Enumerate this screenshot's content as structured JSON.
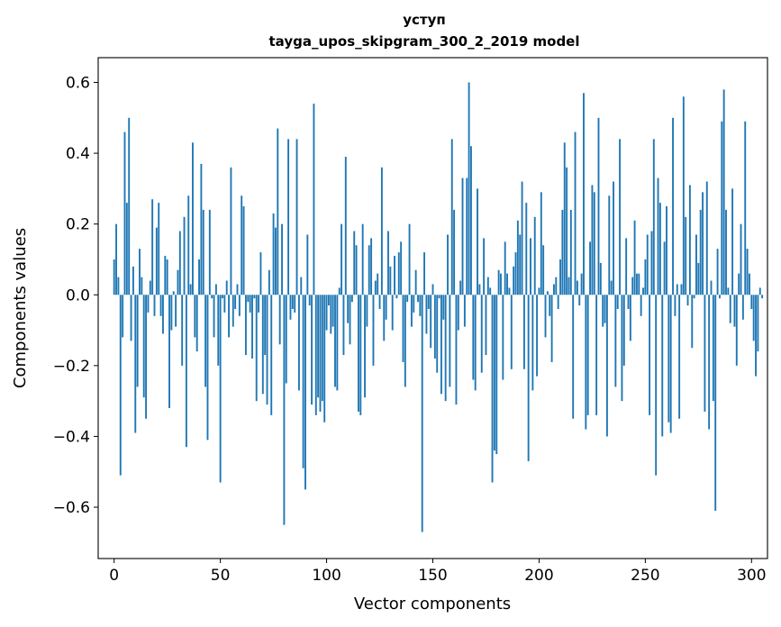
{
  "chart_data": {
    "type": "bar",
    "title": "уступ",
    "subtitle": "tayga_upos_skipgram_300_2_2019 model",
    "xlabel": "Vector components",
    "ylabel": "Components values",
    "xlim": [
      -7.5,
      307.5
    ],
    "ylim": [
      -0.745,
      0.67
    ],
    "x_ticks": [
      {
        "value": 0,
        "label": "0"
      },
      {
        "value": 50,
        "label": "50"
      },
      {
        "value": 100,
        "label": "100"
      },
      {
        "value": 150,
        "label": "150"
      },
      {
        "value": 200,
        "label": "200"
      },
      {
        "value": 250,
        "label": "250"
      },
      {
        "value": 300,
        "label": "300"
      }
    ],
    "y_ticks": [
      {
        "value": -0.6,
        "label": "−0.6"
      },
      {
        "value": -0.4,
        "label": "−0.4"
      },
      {
        "value": -0.2,
        "label": "−0.2"
      },
      {
        "value": 0.0,
        "label": "0.0"
      },
      {
        "value": 0.2,
        "label": "0.2"
      },
      {
        "value": 0.4,
        "label": "0.4"
      },
      {
        "value": 0.6,
        "label": "0.6"
      }
    ],
    "bar_color": "#1f77b4",
    "values": [
      0.1,
      0.2,
      0.05,
      -0.51,
      -0.12,
      0.46,
      0.26,
      0.5,
      -0.13,
      0.08,
      -0.39,
      -0.26,
      0.13,
      0.05,
      -0.29,
      -0.35,
      -0.05,
      0.04,
      0.27,
      -0.06,
      0.19,
      0.26,
      -0.06,
      -0.11,
      0.11,
      0.1,
      -0.32,
      -0.1,
      0.01,
      -0.09,
      0.07,
      0.18,
      -0.2,
      0.22,
      -0.43,
      0.28,
      0.03,
      0.43,
      -0.12,
      -0.16,
      0.1,
      0.37,
      0.24,
      -0.26,
      -0.41,
      0.24,
      -0.01,
      -0.12,
      0.03,
      -0.2,
      -0.53,
      -0.01,
      -0.05,
      0.04,
      -0.12,
      0.36,
      -0.09,
      -0.04,
      0.03,
      -0.06,
      0.28,
      0.25,
      -0.17,
      -0.02,
      -0.05,
      -0.18,
      -0.01,
      -0.3,
      -0.05,
      0.12,
      -0.28,
      -0.17,
      -0.31,
      0.07,
      -0.34,
      0.23,
      0.19,
      0.47,
      -0.14,
      0.2,
      -0.65,
      -0.25,
      0.44,
      -0.07,
      -0.04,
      -0.05,
      0.44,
      -0.27,
      0.05,
      -0.49,
      -0.55,
      0.17,
      -0.03,
      -0.31,
      0.54,
      -0.34,
      -0.29,
      -0.33,
      -0.3,
      -0.36,
      -0.1,
      -0.03,
      -0.11,
      -0.09,
      -0.26,
      -0.27,
      0.02,
      0.2,
      -0.17,
      0.39,
      -0.08,
      -0.14,
      -0.02,
      0.18,
      0.14,
      -0.33,
      -0.34,
      0.2,
      -0.29,
      -0.09,
      0.14,
      0.16,
      -0.2,
      0.04,
      0.06,
      -0.04,
      0.36,
      -0.13,
      -0.07,
      0.18,
      0.08,
      -0.1,
      0.11,
      -0.01,
      0.12,
      0.15,
      -0.19,
      -0.26,
      -0.02,
      0.2,
      -0.09,
      -0.05,
      0.07,
      -0.02,
      -0.06,
      -0.67,
      0.12,
      -0.11,
      -0.04,
      -0.15,
      0.03,
      -0.18,
      -0.22,
      -0.01,
      -0.28,
      -0.07,
      -0.3,
      0.17,
      -0.26,
      0.44,
      0.24,
      -0.31,
      -0.1,
      0.04,
      0.33,
      -0.09,
      0.33,
      0.6,
      0.42,
      -0.24,
      -0.27,
      0.3,
      0.03,
      -0.22,
      0.16,
      -0.17,
      0.05,
      0.02,
      -0.53,
      -0.44,
      -0.45,
      0.07,
      0.06,
      -0.24,
      0.15,
      0.06,
      0.02,
      -0.21,
      0.08,
      0.12,
      0.21,
      0.17,
      0.32,
      -0.21,
      0.26,
      -0.47,
      0.16,
      -0.27,
      0.22,
      -0.23,
      0.02,
      0.29,
      0.14,
      -0.12,
      0.01,
      -0.06,
      -0.19,
      0.03,
      0.05,
      -0.04,
      0.1,
      0.24,
      0.43,
      0.36,
      0.05,
      0.24,
      -0.35,
      0.46,
      0.04,
      -0.03,
      0.06,
      0.57,
      -0.38,
      -0.34,
      0.15,
      0.31,
      0.29,
      -0.34,
      0.5,
      0.09,
      -0.09,
      -0.08,
      -0.4,
      0.28,
      0.04,
      0.32,
      -0.26,
      -0.04,
      0.44,
      -0.3,
      -0.2,
      0.16,
      -0.04,
      -0.13,
      0.05,
      0.21,
      0.06,
      0.06,
      -0.06,
      0.02,
      0.1,
      0.17,
      -0.34,
      0.18,
      0.44,
      -0.51,
      0.33,
      0.26,
      -0.4,
      0.15,
      0.25,
      -0.36,
      -0.39,
      0.5,
      -0.06,
      0.03,
      -0.35,
      0.03,
      0.56,
      0.22,
      -0.03,
      0.31,
      -0.15,
      -0.01,
      0.17,
      0.09,
      0.24,
      0.29,
      -0.33,
      0.32,
      -0.38,
      0.04,
      -0.3,
      -0.61,
      0.13,
      -0.01,
      0.49,
      0.58,
      0.24,
      0.02,
      -0.08,
      0.3,
      -0.09,
      -0.2,
      0.06,
      0.2,
      -0.07,
      0.49,
      0.13,
      0.06,
      -0.04,
      -0.13,
      -0.23,
      -0.16,
      0.02,
      -0.01
    ]
  }
}
